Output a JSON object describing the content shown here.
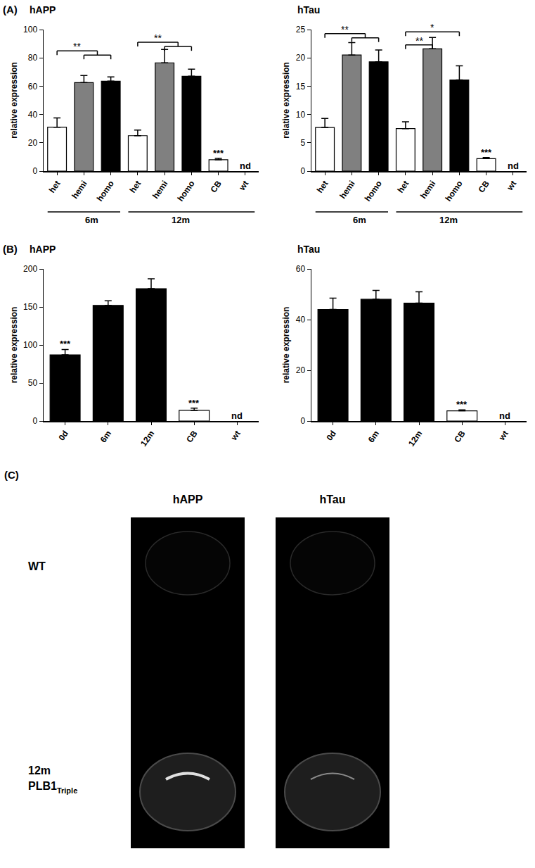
{
  "chart_data": [
    {
      "panel": "(A)",
      "title": "hAPP",
      "type": "bar",
      "y_label": "relative expression",
      "categories": [
        "het",
        "hemi",
        "homo",
        "het",
        "hemi",
        "homo",
        "CB",
        "wt"
      ],
      "series": [
        {
          "values": [
            31,
            62.5,
            63.5,
            25,
            76.5,
            67,
            null,
            null
          ],
          "errors": [
            6.5,
            5,
            3,
            4,
            9.5,
            5,
            null,
            null
          ],
          "colors": [
            "#ffffff",
            "#808080",
            "#000000",
            "#ffffff",
            "#808080",
            "#000000",
            null,
            null
          ],
          "marker": "solid"
        },
        {
          "values": [
            null,
            null,
            null,
            null,
            null,
            null,
            8,
            null
          ],
          "errors": [
            null,
            null,
            null,
            null,
            null,
            null,
            1,
            null
          ],
          "color": "#000000",
          "marker": "hatched"
        }
      ],
      "ylim": [
        0,
        100
      ],
      "yticks": [
        0,
        20,
        40,
        60,
        80,
        100
      ],
      "grid": false,
      "groups": [
        {
          "label": "6m",
          "from": 0,
          "to": 2
        },
        {
          "label": "12m",
          "from": 3,
          "to": 7
        }
      ],
      "significance": [
        {
          "from": 0,
          "to": [
            1,
            2
          ],
          "level": 85,
          "label": "**"
        },
        {
          "from": 3,
          "to": [
            4,
            5
          ],
          "level": 91,
          "label": "**"
        }
      ],
      "annotations": [
        {
          "index": 6,
          "text": "***"
        },
        {
          "index": 7,
          "text": "nd"
        }
      ]
    },
    {
      "title": "hTau",
      "type": "bar",
      "y_label": "relative expression",
      "categories": [
        "het",
        "hemi",
        "homo",
        "het",
        "hemi",
        "homo",
        "CB",
        "wt"
      ],
      "series": [
        {
          "values": [
            7.7,
            20.5,
            19.3,
            7.5,
            21.6,
            16.1,
            null,
            null
          ],
          "errors": [
            1.6,
            2.2,
            2.1,
            1.2,
            2.0,
            2.5,
            null,
            null
          ],
          "colors": [
            "#ffffff",
            "#808080",
            "#000000",
            "#ffffff",
            "#808080",
            "#000000",
            null,
            null
          ],
          "marker": "solid"
        },
        {
          "values": [
            null,
            null,
            null,
            null,
            null,
            null,
            2.2,
            null
          ],
          "errors": [
            null,
            null,
            null,
            null,
            null,
            null,
            0.2,
            null
          ],
          "color": "#000000",
          "marker": "hatched"
        }
      ],
      "ylim": [
        0,
        25
      ],
      "yticks": [
        0,
        5,
        10,
        15,
        20,
        25
      ],
      "grid": false,
      "groups": [
        {
          "label": "6m",
          "from": 0,
          "to": 2
        },
        {
          "label": "12m",
          "from": 3,
          "to": 7
        }
      ],
      "significance": [
        {
          "from": 0,
          "to": [
            1,
            2
          ],
          "level": 24.3,
          "label": "**"
        },
        {
          "from": 3,
          "to": [
            4
          ],
          "level": 22.3,
          "label": "**"
        },
        {
          "from": 3,
          "to": [
            5
          ],
          "level": 24.6,
          "label": "*"
        }
      ],
      "annotations": [
        {
          "index": 6,
          "text": "***"
        },
        {
          "index": 7,
          "text": "nd"
        }
      ]
    },
    {
      "panel": "(B)",
      "title": "hAPP",
      "type": "bar",
      "y_label": "relative expression",
      "categories": [
        "0d",
        "6m",
        "12m",
        "CB",
        "wt"
      ],
      "series": [
        {
          "values": [
            87,
            152,
            174,
            null,
            null
          ],
          "errors": [
            7,
            6,
            13,
            null,
            null
          ],
          "colors": [
            "#000000",
            "#000000",
            "#000000",
            null,
            null
          ],
          "marker": "solid"
        },
        {
          "values": [
            null,
            null,
            null,
            14,
            null
          ],
          "errors": [
            null,
            null,
            null,
            3,
            null
          ],
          "color": "#000000",
          "marker": "hatched"
        }
      ],
      "ylim": [
        0,
        200
      ],
      "yticks": [
        0,
        50,
        100,
        150,
        200
      ],
      "grid": false,
      "annotations": [
        {
          "index": 0,
          "text": "***"
        },
        {
          "index": 3,
          "text": "***"
        },
        {
          "index": 4,
          "text": "nd"
        }
      ]
    },
    {
      "title": "hTau",
      "type": "bar",
      "y_label": "relative expression",
      "categories": [
        "0d",
        "6m",
        "12m",
        "CB",
        "wt"
      ],
      "series": [
        {
          "values": [
            44,
            48,
            46.5,
            null,
            null
          ],
          "errors": [
            4.5,
            3.5,
            4.5,
            null,
            null
          ],
          "colors": [
            "#000000",
            "#000000",
            "#000000",
            null,
            null
          ],
          "marker": "solid"
        },
        {
          "values": [
            null,
            null,
            null,
            4,
            null
          ],
          "errors": [
            null,
            null,
            null,
            0.4,
            null
          ],
          "color": "#000000",
          "marker": "hatched"
        }
      ],
      "ylim": [
        0,
        60
      ],
      "yticks": [
        0,
        20,
        40,
        60
      ],
      "grid": false,
      "annotations": [
        {
          "index": 3,
          "text": "***"
        },
        {
          "index": 4,
          "text": "nd"
        }
      ]
    }
  ],
  "panel_c": {
    "panel": "(C)",
    "columns": [
      "hAPP",
      "hTau"
    ],
    "rows": [
      {
        "lines": [
          "WT"
        ]
      },
      {
        "lines": [
          "12m",
          "PLB1"
        ],
        "subscript": "Triple"
      }
    ]
  }
}
